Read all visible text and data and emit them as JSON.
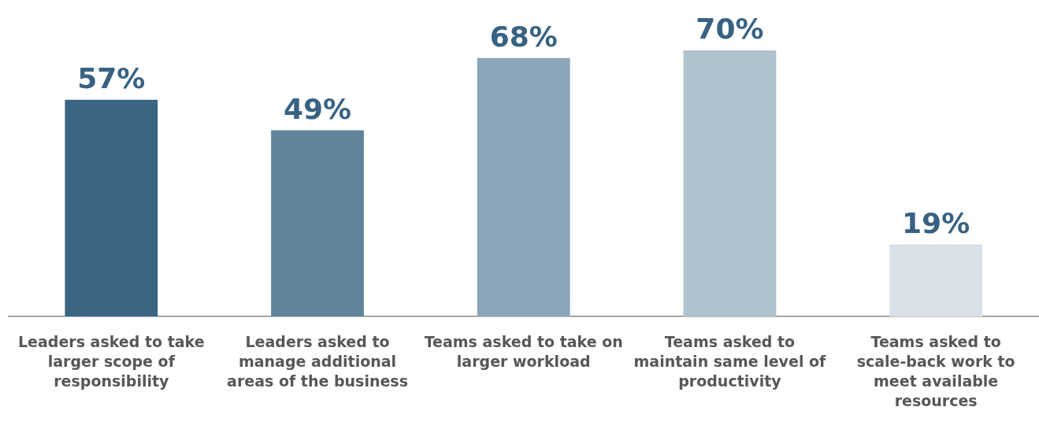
{
  "chart_data": {
    "type": "bar",
    "categories": [
      "Leaders asked to take larger scope of responsibility",
      "Leaders asked to manage additional areas of the business",
      "Teams asked to take on larger workload",
      "Teams asked to maintain same level of productivity",
      "Teams asked to scale-back work to meet available resources"
    ],
    "values": [
      57,
      49,
      68,
      70,
      19
    ],
    "colors": [
      "#3b6683",
      "#60849c",
      "#8aa5b7",
      "#b0c2ce",
      "#d9e0e7"
    ],
    "value_labels": [
      "57%",
      "49%",
      "68%",
      "70%",
      "19%"
    ],
    "grid": false,
    "legend": false
  }
}
